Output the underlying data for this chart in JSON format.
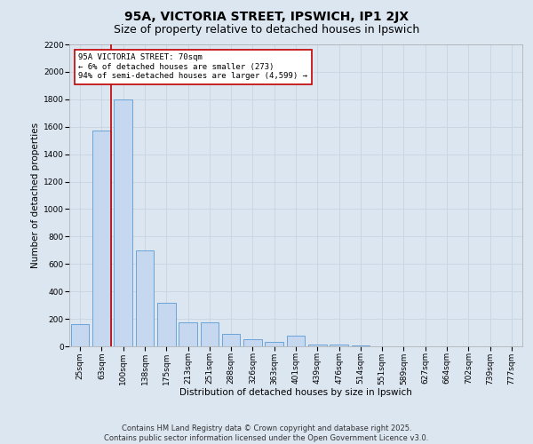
{
  "title": "95A, VICTORIA STREET, IPSWICH, IP1 2JX",
  "subtitle": "Size of property relative to detached houses in Ipswich",
  "xlabel": "Distribution of detached houses by size in Ipswich",
  "ylabel": "Number of detached properties",
  "categories": [
    "25sqm",
    "63sqm",
    "100sqm",
    "138sqm",
    "175sqm",
    "213sqm",
    "251sqm",
    "288sqm",
    "326sqm",
    "363sqm",
    "401sqm",
    "439sqm",
    "476sqm",
    "514sqm",
    "551sqm",
    "589sqm",
    "627sqm",
    "664sqm",
    "702sqm",
    "739sqm",
    "777sqm"
  ],
  "values": [
    160,
    1570,
    1800,
    700,
    320,
    175,
    175,
    90,
    50,
    30,
    80,
    15,
    10,
    5,
    0,
    0,
    0,
    0,
    0,
    0,
    0
  ],
  "bar_color": "#c5d8f0",
  "bar_edge_color": "#5b9bd5",
  "subject_line_color": "#c00000",
  "annotation_text": "95A VICTORIA STREET: 70sqm\n← 6% of detached houses are smaller (273)\n94% of semi-detached houses are larger (4,599) →",
  "annotation_box_color": "#ffffff",
  "annotation_box_edge_color": "#c00000",
  "ylim": [
    0,
    2200
  ],
  "yticks": [
    0,
    200,
    400,
    600,
    800,
    1000,
    1200,
    1400,
    1600,
    1800,
    2000,
    2200
  ],
  "grid_color": "#c8d4e3",
  "bg_color": "#dce6f1",
  "plot_bg_color": "#dce6f1",
  "footnote": "Contains HM Land Registry data © Crown copyright and database right 2025.\nContains public sector information licensed under the Open Government Licence v3.0.",
  "title_fontsize": 10,
  "subtitle_fontsize": 9,
  "label_fontsize": 7.5,
  "tick_fontsize": 6.5,
  "annot_fontsize": 6.5,
  "footnote_fontsize": 6
}
